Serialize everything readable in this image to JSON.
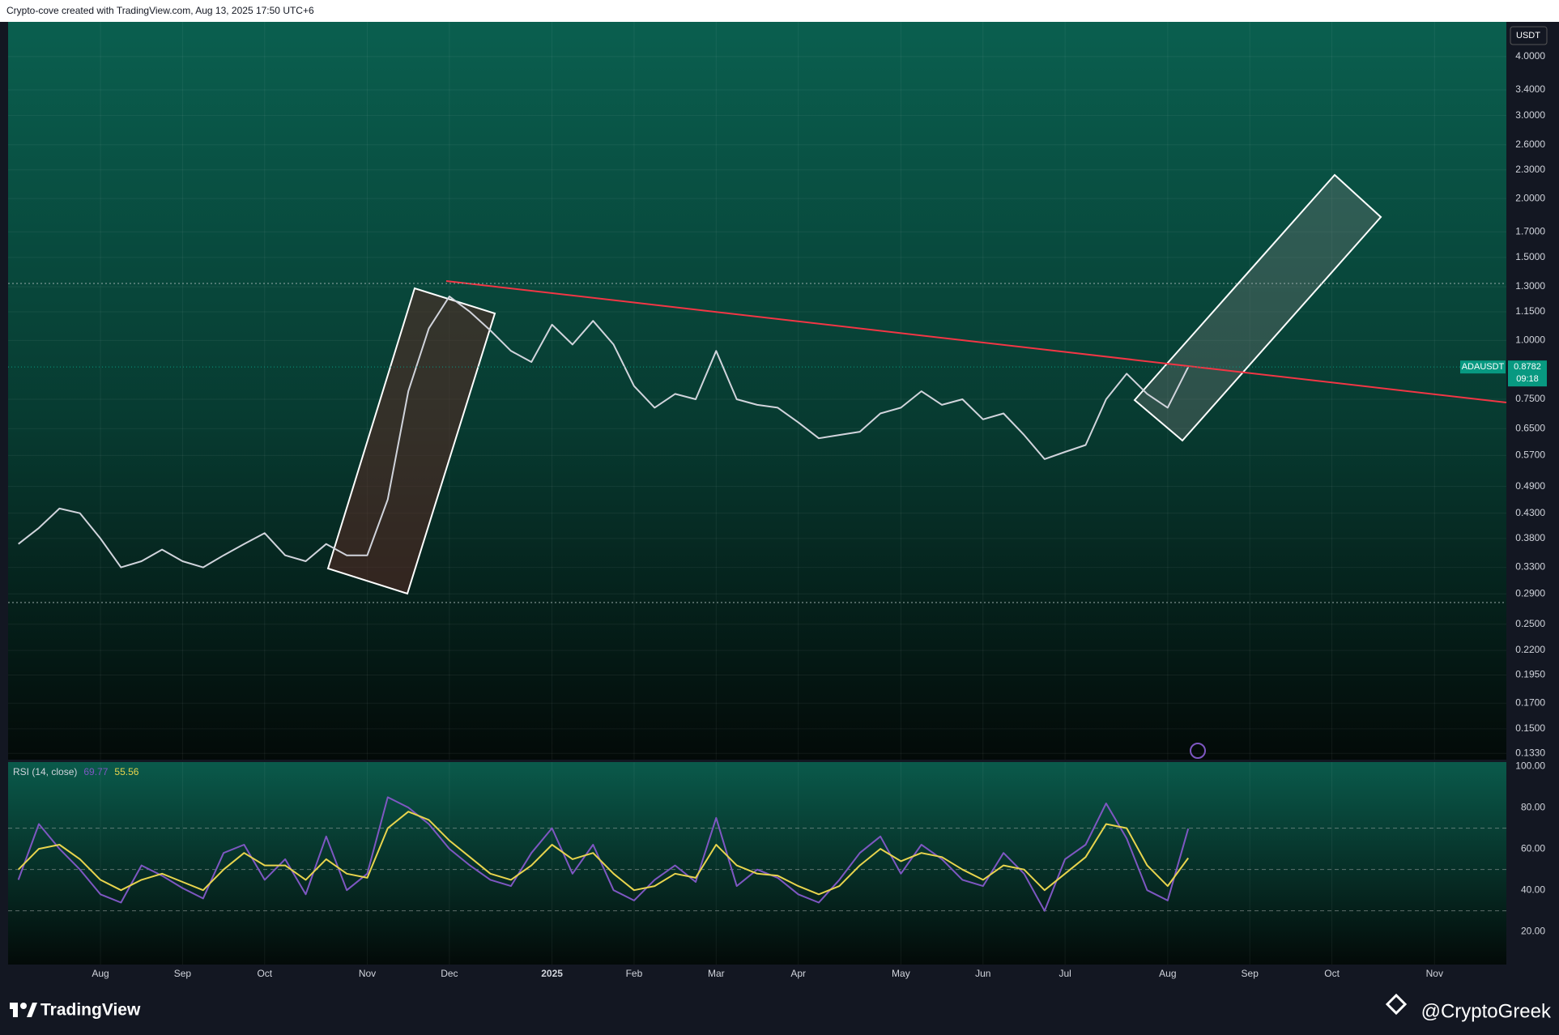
{
  "header": {
    "text": "Crypto-cove created with TradingView.com, Aug 13, 2025 17:50 UTC+6"
  },
  "chart_data": [
    {
      "type": "line",
      "currency": "USDT",
      "log_scale": true,
      "grid": true,
      "countdown": "09:18",
      "categories": [
        null,
        null,
        null,
        null,
        "Aug",
        null,
        null,
        null,
        "Sep",
        null,
        null,
        null,
        "Oct",
        null,
        null,
        null,
        null,
        "Nov",
        null,
        null,
        null,
        "Dec",
        null,
        null,
        null,
        null,
        "2025",
        null,
        null,
        null,
        "Feb",
        null,
        null,
        null,
        "Mar",
        null,
        null,
        null,
        "Apr",
        null,
        null,
        null,
        null,
        "May",
        null,
        null,
        null,
        "Jun",
        null,
        null,
        null,
        "Jul",
        null,
        null,
        null,
        null,
        "Aug",
        null,
        null,
        null,
        "Sep",
        null,
        null,
        null,
        "Oct",
        null,
        null,
        null,
        null,
        "Nov",
        null,
        null,
        null
      ],
      "series": [
        {
          "name": "ADAUSDT",
          "color": "#d1d4dc",
          "values": [
            0.37,
            0.4,
            0.44,
            0.43,
            0.38,
            0.33,
            0.34,
            0.36,
            0.34,
            0.33,
            0.35,
            0.37,
            0.39,
            0.35,
            0.34,
            0.37,
            0.35,
            0.35,
            0.46,
            0.78,
            1.06,
            1.24,
            1.15,
            1.05,
            0.95,
            0.9,
            1.08,
            0.98,
            1.1,
            0.98,
            0.8,
            0.72,
            0.77,
            0.75,
            0.95,
            0.75,
            0.73,
            0.72,
            0.67,
            0.62,
            0.63,
            0.64,
            0.7,
            0.72,
            0.78,
            0.73,
            0.75,
            0.68,
            0.7,
            0.63,
            0.56,
            0.58,
            0.6,
            0.75,
            0.85,
            0.77,
            0.72,
            0.8782,
            null,
            null,
            null,
            null,
            null,
            null,
            null,
            null,
            null,
            null,
            null,
            null,
            null,
            null,
            null
          ]
        }
      ],
      "ylim": [
        0.129,
        4.74
      ],
      "yticks": [
        {
          "value": 4.0,
          "label": "4.0000"
        },
        {
          "value": 3.4,
          "label": "3.4000"
        },
        {
          "value": 3.0,
          "label": "3.0000"
        },
        {
          "value": 2.6,
          "label": "2.6000"
        },
        {
          "value": 2.3,
          "label": "2.3000"
        },
        {
          "value": 2.0,
          "label": "2.0000"
        },
        {
          "value": 1.7,
          "label": "1.7000"
        },
        {
          "value": 1.5,
          "label": "1.5000"
        },
        {
          "value": 1.3,
          "label": "1.3000"
        },
        {
          "value": 1.15,
          "label": "1.1500"
        },
        {
          "value": 1.0,
          "label": "1.0000"
        },
        {
          "value": 0.75,
          "label": "0.7500"
        },
        {
          "value": 0.65,
          "label": "0.6500"
        },
        {
          "value": 0.57,
          "label": "0.5700"
        },
        {
          "value": 0.49,
          "label": "0.4900"
        },
        {
          "value": 0.43,
          "label": "0.4300"
        },
        {
          "value": 0.38,
          "label": "0.3800"
        },
        {
          "value": 0.33,
          "label": "0.3300"
        },
        {
          "value": 0.29,
          "label": "0.2900"
        },
        {
          "value": 0.25,
          "label": "0.2500"
        },
        {
          "value": 0.22,
          "label": "0.2200"
        },
        {
          "value": 0.195,
          "label": "0.1950"
        },
        {
          "value": 0.17,
          "label": "0.1700"
        },
        {
          "value": 0.15,
          "label": "0.1500"
        },
        {
          "value": 0.133,
          "label": "0.1330"
        }
      ]
    },
    {
      "type": "line",
      "title": "RSI (14, close)",
      "series": [
        {
          "color": "#7e57c2",
          "values": [
            45,
            72,
            60,
            50,
            38,
            34,
            52,
            47,
            41,
            36,
            58,
            62,
            45,
            55,
            38,
            66,
            40,
            48,
            85,
            80,
            72,
            60,
            52,
            45,
            42,
            58,
            70,
            48,
            62,
            40,
            35,
            45,
            52,
            44,
            75,
            42,
            50,
            46,
            38,
            34,
            45,
            58,
            66,
            48,
            62,
            55,
            45,
            42,
            58,
            48,
            30,
            55,
            62,
            82,
            65,
            40,
            35,
            69.77,
            null,
            null,
            null,
            null,
            null,
            null,
            null,
            null,
            null,
            null,
            null,
            null,
            null,
            null,
            null
          ]
        },
        {
          "color": "#e8d44d",
          "values": [
            50,
            60,
            62,
            55,
            45,
            40,
            45,
            48,
            44,
            40,
            50,
            58,
            52,
            52,
            45,
            55,
            48,
            46,
            70,
            78,
            74,
            64,
            56,
            48,
            45,
            52,
            62,
            55,
            58,
            48,
            40,
            42,
            48,
            46,
            62,
            52,
            48,
            47,
            42,
            38,
            42,
            52,
            60,
            54,
            58,
            56,
            50,
            45,
            52,
            50,
            40,
            48,
            56,
            72,
            70,
            52,
            42,
            55.56,
            null,
            null,
            null,
            null,
            null,
            null,
            null,
            null,
            null,
            null,
            null,
            null,
            null,
            null,
            null
          ]
        }
      ],
      "ylim": [
        4,
        102
      ],
      "yticks": [
        {
          "value": 100,
          "label": "100.00"
        },
        {
          "value": 80,
          "label": "80.00"
        },
        {
          "value": 60,
          "label": "60.00"
        },
        {
          "value": 40,
          "label": "40.00"
        },
        {
          "value": 20,
          "label": "20.00"
        }
      ],
      "bands": [
        70,
        50,
        30
      ]
    }
  ],
  "footer": {
    "brand": "TradingView",
    "author": "@CryptoGreek"
  }
}
